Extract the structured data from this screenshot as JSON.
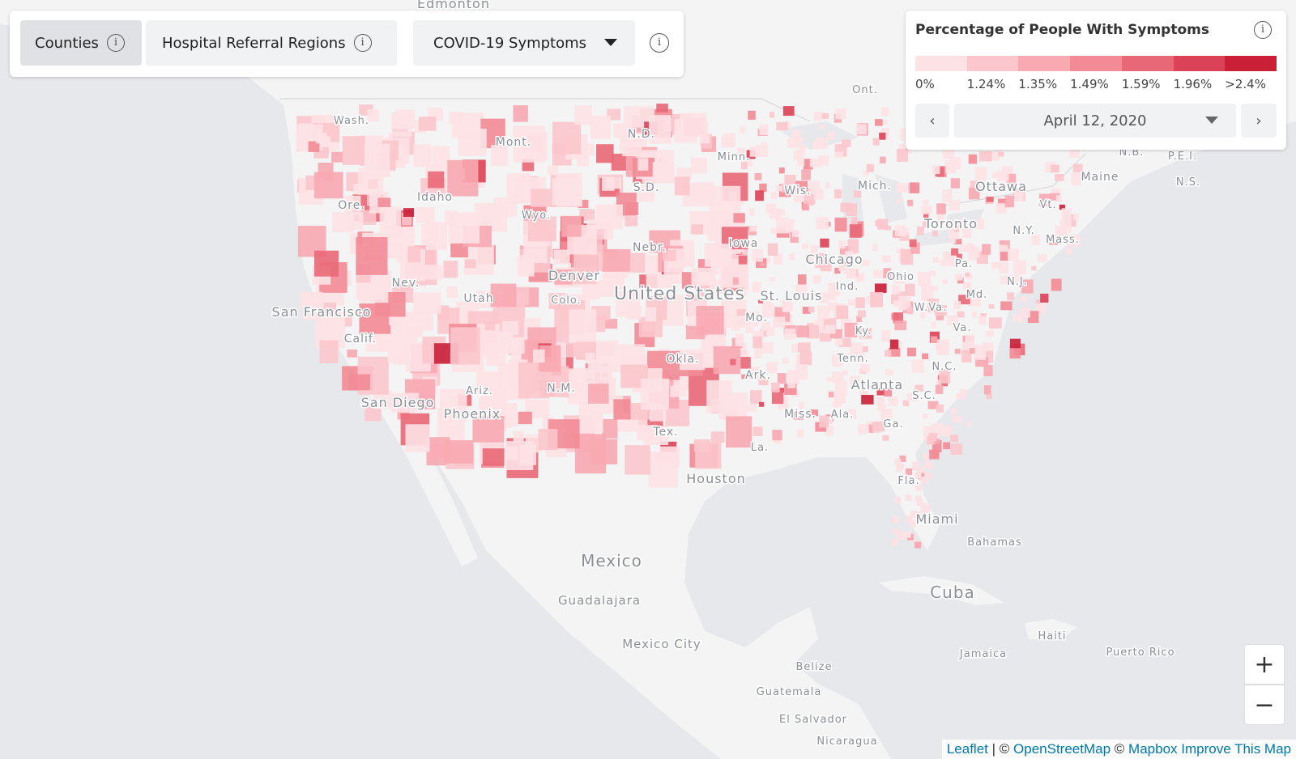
{
  "controls": {
    "tabs": [
      "Counties",
      "Hospital Referral Regions"
    ],
    "dropdown": "COVID-19 Symptoms"
  },
  "legend": {
    "title": "Percentage of People With Symptoms",
    "bins": [
      {
        "label": "0%",
        "color": "#fde2e5"
      },
      {
        "label": "1.24%",
        "color": "#fbc6cc"
      },
      {
        "label": "1.35%",
        "color": "#f8a9b1"
      },
      {
        "label": "1.49%",
        "color": "#f28b96"
      },
      {
        "label": "1.59%",
        "color": "#e96877"
      },
      {
        "label": "1.96%",
        "color": "#dc4257"
      },
      {
        "label": ">2.4%",
        "color": "#c91f37"
      }
    ],
    "date": "April 12, 2020"
  },
  "map_labels": [
    "Edmonton",
    "Mont.",
    "N.D.",
    "Ont.",
    "N.B.",
    "P.E.I.",
    "N.S.",
    "Wash.",
    "Idaho",
    "Ore.",
    "Wyo.",
    "S.D.",
    "Wis.",
    "Mich.",
    "Ottawa",
    "Minn.",
    "Toronto",
    "Maine",
    "Vt.",
    "N.Y.",
    "Mass.",
    "Nebr.",
    "Iowa",
    "Chicago",
    "Pa.",
    "Ohio",
    "Nev.",
    "Utah",
    "Denver",
    "Colo.",
    "United States",
    "St. Louis",
    "Ind.",
    "N.J.",
    "Md.",
    "San Francisco",
    "Calif.",
    "Mo.",
    "W.Va.",
    "Ky.",
    "Va.",
    "Okla.",
    "Tenn.",
    "N.C.",
    "Ariz.",
    "N.M.",
    "Ark.",
    "Atlanta",
    "S.C.",
    "San Diego",
    "Phoenix",
    "Miss.",
    "Ala.",
    "Ga.",
    "Tex.",
    "La.",
    "Houston",
    "Fla.",
    "Miami",
    "Bahamas",
    "Mexico",
    "Cuba",
    "Guadalajara",
    "Mexico City",
    "Haiti",
    "Jamaica",
    "Puerto Rico",
    "Belize",
    "Guatemala",
    "El Salvador",
    "Nicaragua"
  ],
  "zoom": [
    "+",
    "−"
  ],
  "attribution": {
    "leaflet": "Leaflet",
    "sep": "| ©",
    "osm": "OpenStreetMap",
    "copy": "©",
    "mapbox": "Mapbox",
    "improve": "Improve This Map"
  }
}
